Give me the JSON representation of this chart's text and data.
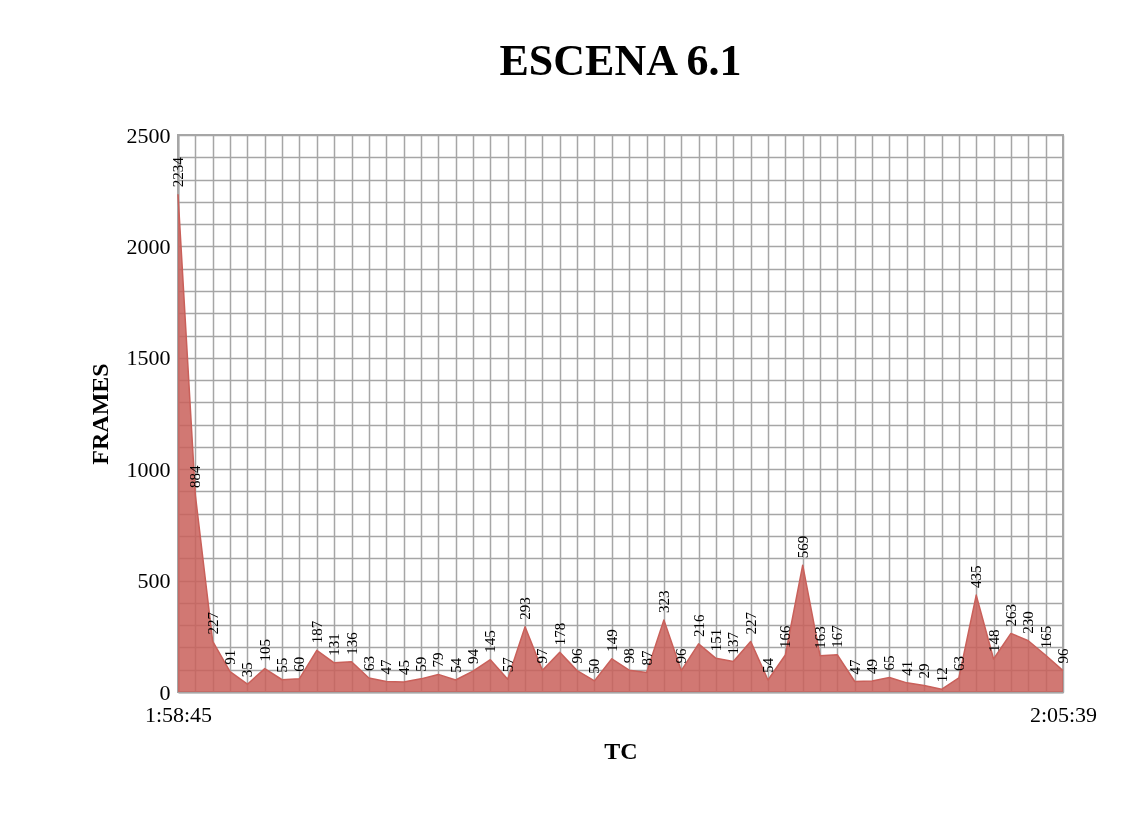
{
  "chart_data": {
    "type": "area",
    "title": "ESCENA 6.1",
    "xlabel": "TC",
    "ylabel": "FRAMES",
    "categories": [
      "1:58:45",
      null,
      null,
      null,
      null,
      null,
      null,
      null,
      null,
      null,
      null,
      null,
      null,
      null,
      null,
      null,
      null,
      null,
      null,
      null,
      null,
      null,
      null,
      null,
      null,
      null,
      null,
      null,
      null,
      null,
      null,
      null,
      null,
      null,
      null,
      null,
      null,
      null,
      null,
      null,
      null,
      null,
      null,
      null,
      null,
      null,
      null,
      null,
      null,
      null,
      null,
      "2:05:39"
    ],
    "series": [
      {
        "color": "#c9605a",
        "values": [
          2234,
          884,
          227,
          91,
          35,
          105,
          55,
          60,
          187,
          131,
          136,
          63,
          47,
          45,
          59,
          79,
          54,
          94,
          145,
          57,
          293,
          97,
          178,
          96,
          50,
          149,
          98,
          87,
          323,
          96,
          216,
          151,
          137,
          227,
          54,
          166,
          569,
          163,
          167,
          47,
          49,
          65,
          41,
          29,
          12,
          63,
          435,
          148,
          263,
          230,
          165,
          96
        ]
      }
    ],
    "ylim": [
      0,
      2500
    ],
    "yticks": [
      0,
      {
        "value": 100,
        "label": null
      },
      {
        "value": 200,
        "label": null
      },
      {
        "value": 300,
        "label": null
      },
      {
        "value": 400,
        "label": null
      },
      500,
      {
        "value": 600,
        "label": null
      },
      {
        "value": 700,
        "label": null
      },
      {
        "value": 800,
        "label": null
      },
      {
        "value": 900,
        "label": null
      },
      1000,
      {
        "value": 1100,
        "label": null
      },
      {
        "value": 1200,
        "label": null
      },
      {
        "value": 1300,
        "label": null
      },
      {
        "value": 1400,
        "label": null
      },
      1500,
      {
        "value": 1600,
        "label": null
      },
      {
        "value": 1700,
        "label": null
      },
      {
        "value": 1800,
        "label": null
      },
      {
        "value": 1900,
        "label": null
      },
      2000,
      {
        "value": 2100,
        "label": null
      },
      {
        "value": 2200,
        "label": null
      },
      {
        "value": 2300,
        "label": null
      },
      {
        "value": 2400,
        "label": null
      },
      2500
    ],
    "grid": true,
    "legend": false,
    "data_labels": true
  }
}
